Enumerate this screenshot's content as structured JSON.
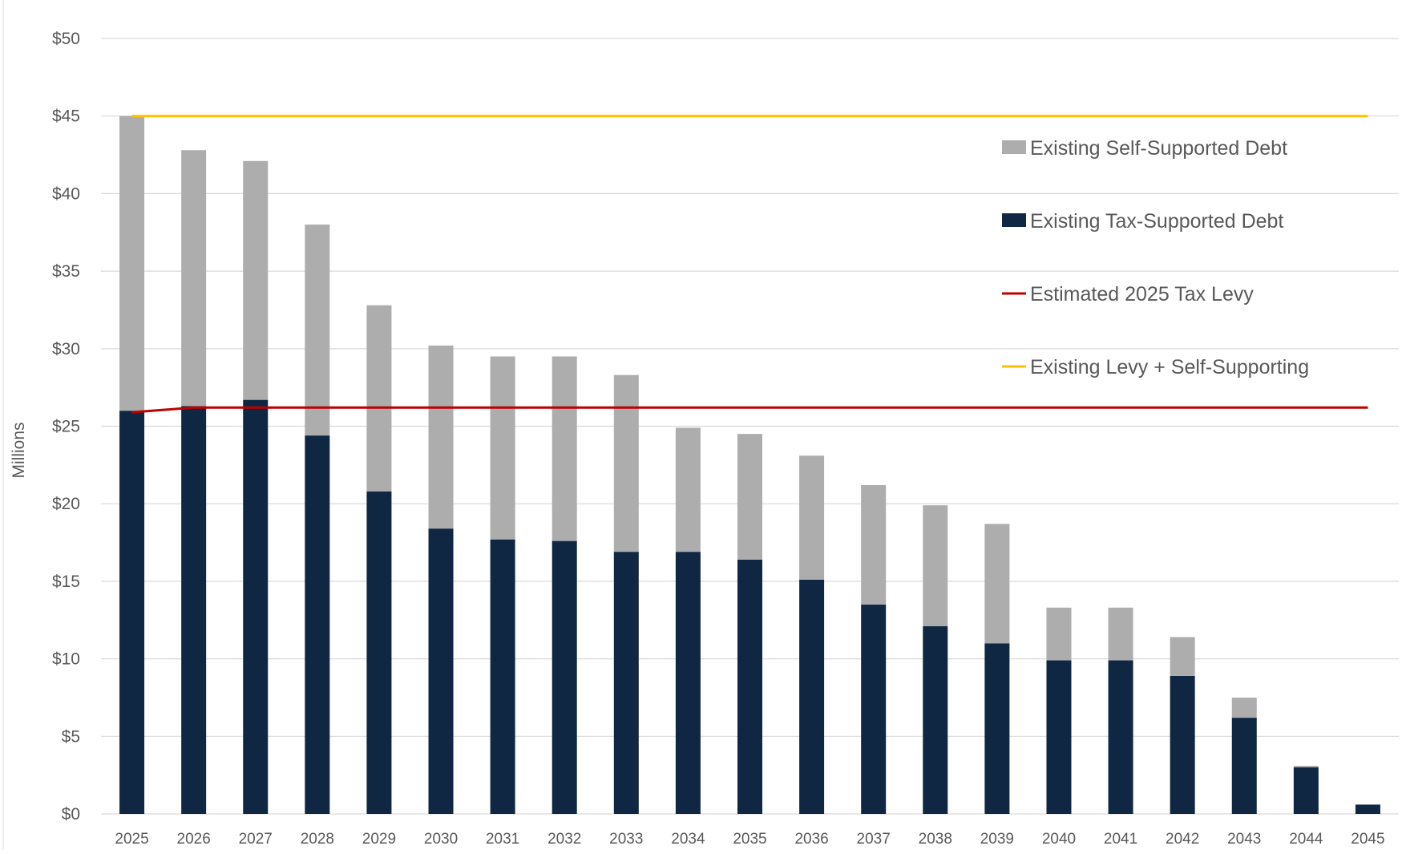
{
  "chart_data": {
    "type": "bar",
    "stacked": true,
    "title": "",
    "xlabel": "",
    "ylabel": "Millions",
    "ylim": [
      0,
      50
    ],
    "yticks": [
      0,
      5,
      10,
      15,
      20,
      25,
      30,
      35,
      40,
      45,
      50
    ],
    "ytick_labels": [
      "$0",
      "$5",
      "$10",
      "$15",
      "$20",
      "$25",
      "$30",
      "$35",
      "$40",
      "$45",
      "$50"
    ],
    "grid": true,
    "legend_position": "top-right",
    "categories": [
      "2025",
      "2026",
      "2027",
      "2028",
      "2029",
      "2030",
      "2031",
      "2032",
      "2033",
      "2034",
      "2035",
      "2036",
      "2037",
      "2038",
      "2039",
      "2040",
      "2041",
      "2042",
      "2043",
      "2044",
      "2045"
    ],
    "series": [
      {
        "name": "Existing Tax-Supported Debt",
        "kind": "bar",
        "color": "#0f2742",
        "values": [
          26.0,
          26.3,
          26.7,
          24.4,
          20.8,
          18.4,
          17.7,
          17.6,
          16.9,
          16.9,
          16.4,
          15.1,
          13.5,
          12.1,
          11.0,
          9.9,
          9.9,
          8.9,
          6.2,
          3.0,
          0.6
        ]
      },
      {
        "name": "Existing Self-Supported Debt",
        "kind": "bar",
        "color": "#adadad",
        "values": [
          19.0,
          16.5,
          15.4,
          13.6,
          12.0,
          11.8,
          11.8,
          11.9,
          11.4,
          8.0,
          8.1,
          8.0,
          7.7,
          7.8,
          7.7,
          3.4,
          3.4,
          2.5,
          1.3,
          0.1,
          0.0
        ]
      },
      {
        "name": "Estimated 2025 Tax Levy",
        "kind": "line",
        "color": "#c00000",
        "values": [
          25.9,
          26.2,
          26.2,
          26.2,
          26.2,
          26.2,
          26.2,
          26.2,
          26.2,
          26.2,
          26.2,
          26.2,
          26.2,
          26.2,
          26.2,
          26.2,
          26.2,
          26.2,
          26.2,
          26.2,
          26.2
        ]
      },
      {
        "name": "Existing Levy + Self-Supporting",
        "kind": "line",
        "color": "#ffc000",
        "values": [
          45.0,
          45.0,
          45.0,
          45.0,
          45.0,
          45.0,
          45.0,
          45.0,
          45.0,
          45.0,
          45.0,
          45.0,
          45.0,
          45.0,
          45.0,
          45.0,
          45.0,
          45.0,
          45.0,
          45.0,
          45.0
        ]
      }
    ],
    "legend": [
      {
        "label": "Existing Self-Supported Debt",
        "marker": "box",
        "color": "#adadad"
      },
      {
        "label": "Existing Tax-Supported Debt",
        "marker": "box",
        "color": "#0f2742"
      },
      {
        "label": "Estimated 2025 Tax Levy",
        "marker": "line",
        "color": "#c00000"
      },
      {
        "label": "Existing Levy + Self-Supporting",
        "marker": "line",
        "color": "#ffc000"
      }
    ],
    "gridline_color": "#d9d9d9"
  }
}
